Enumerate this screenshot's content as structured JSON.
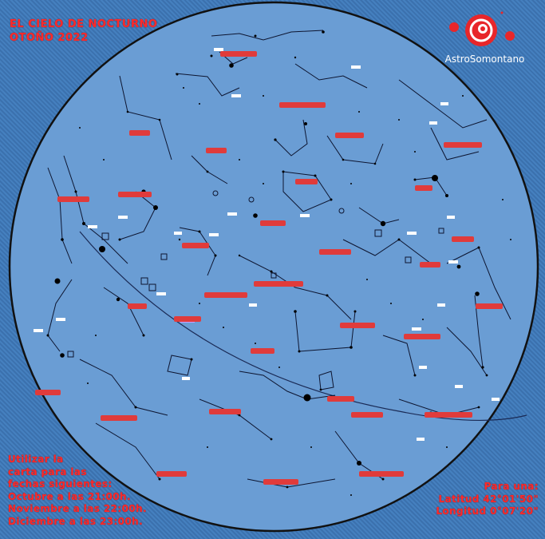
{
  "title": {
    "line1": "EL CIELO DE NOCTURNO",
    "line2": "OTOÑO 2022"
  },
  "brand": {
    "name": "AstroSomontano",
    "colors": {
      "red": "#e8262a",
      "white": "#ffffff"
    },
    "icon": "spiral-logo-icon"
  },
  "instructions": {
    "lines": [
      "Utilizar la",
      "carta para las",
      "fechas siguientes:",
      "Octubre a las 21:00h.",
      "Noviembre a las 22:00h.",
      "Diciembre a las 23:00h."
    ]
  },
  "location": {
    "lines": [
      "Para una:",
      "Latitud 42°01'50\"",
      "Longitud 0°07'20\""
    ]
  },
  "colors": {
    "background": "#3f78b8",
    "sky": "#6a9dd4",
    "horizon": "#111111",
    "constellation_lines": "#0d1530",
    "labels": "#ff2a2a"
  }
}
